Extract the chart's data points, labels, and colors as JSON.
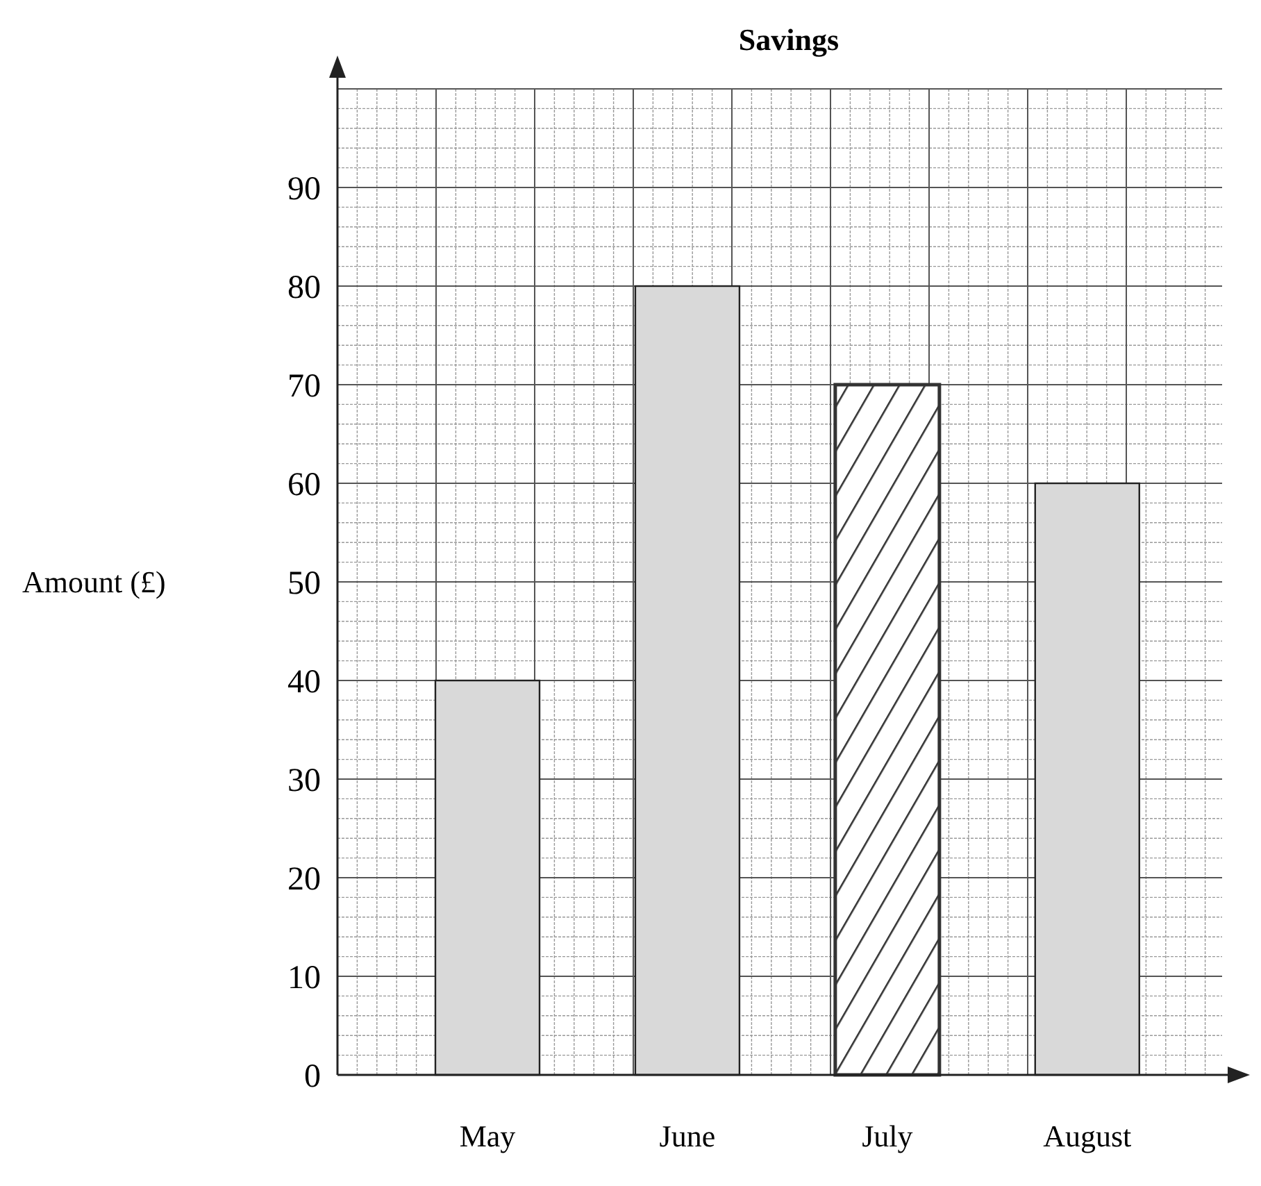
{
  "chart_data": {
    "type": "bar",
    "title": "Savings",
    "ylabel": "Amount (£)",
    "categories": [
      "May",
      "June",
      "July",
      "August"
    ],
    "values": [
      40,
      80,
      70,
      60
    ],
    "colors": [
      "#d9d9d9",
      "#d9d9d9",
      "#333333",
      "#d9d9d9"
    ],
    "ylim": [
      0,
      100
    ],
    "yticks": [
      0,
      10,
      20,
      30,
      40,
      50,
      60,
      70,
      80,
      90,
      {
        "value": 100,
        "label": null
      }
    ],
    "grid": true
  }
}
